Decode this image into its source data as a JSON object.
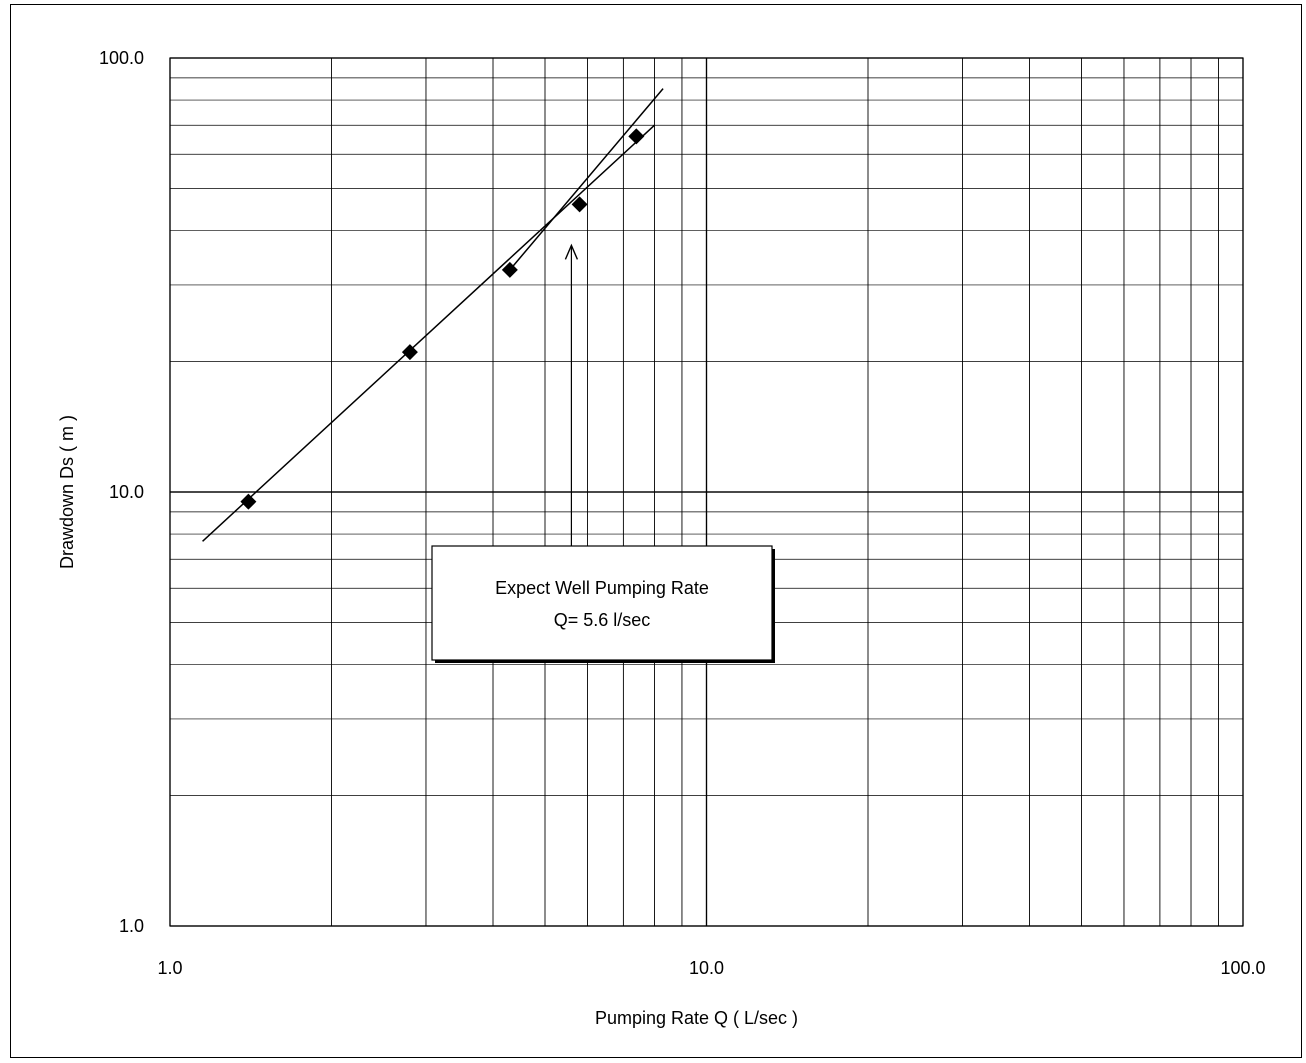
{
  "chart_data": {
    "type": "scatter",
    "title": "",
    "xlabel": "Pumping Rate Q ( L/sec )",
    "ylabel": "Drawdown Ds ( m )",
    "x_scale": "log",
    "y_scale": "log",
    "xlim": [
      1.0,
      100.0
    ],
    "ylim": [
      1.0,
      100.0
    ],
    "grid": true,
    "x_ticks": [
      "1.0",
      "10.0",
      "100.0"
    ],
    "y_ticks": [
      "1.0",
      "10.0",
      "100.0"
    ],
    "series": [
      {
        "values": [
          {
            "x": 1.4,
            "y": 9.5
          },
          {
            "x": 2.8,
            "y": 21.0
          },
          {
            "x": 4.3,
            "y": 32.5
          },
          {
            "x": 5.8,
            "y": 46.0
          },
          {
            "x": 7.4,
            "y": 66.0
          }
        ]
      }
    ],
    "fit_lines": [
      {
        "x": [
          1.15,
          8.0
        ],
        "y": [
          7.7,
          70.0
        ]
      },
      {
        "x": [
          4.3,
          8.3
        ],
        "y": [
          32.5,
          85.0
        ]
      }
    ],
    "annotation": {
      "lines": [
        "Expect  Well Pumping Rate",
        "Q= 5.6 l/sec"
      ],
      "arrow_x": 5.6,
      "arrow_y_from": 7.3,
      "arrow_y_to": 37.0
    },
    "colors": {
      "line": "#000000",
      "marker": "#000000",
      "grid": "#000000",
      "background": "#ffffff"
    }
  }
}
